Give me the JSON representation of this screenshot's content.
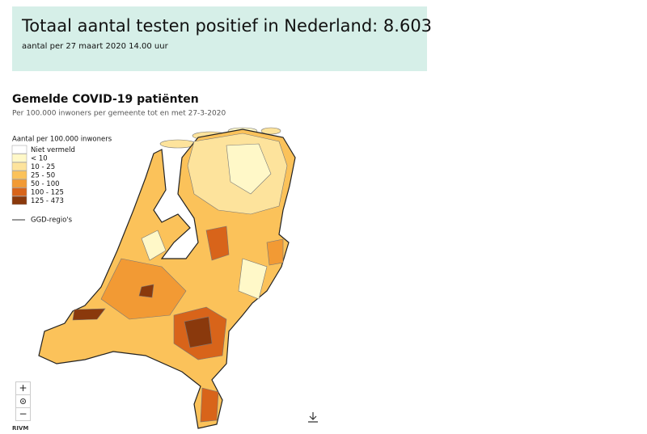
{
  "header": {
    "title": "Totaal aantal testen positief in Nederland: 8.603",
    "subtitle": "aantal per 27 maart 2020 14.00 uur"
  },
  "map": {
    "title": "Gemelde COVID-19 patiënten",
    "subtitle": "Per 100.000 inwoners per gemeente tot en met 27-3-2020"
  },
  "legend": {
    "title": "Aantal per 100.000 inwoners",
    "items": [
      {
        "label": "Niet vermeld",
        "color": "#ffffff"
      },
      {
        "label": "< 10",
        "color": "#fff8c8"
      },
      {
        "label": "10 - 25",
        "color": "#fde39c"
      },
      {
        "label": "25 - 50",
        "color": "#fbc25a"
      },
      {
        "label": "50 - 100",
        "color": "#f29a34"
      },
      {
        "label": "100 - 125",
        "color": "#d8641a"
      },
      {
        "label": "125 - 473",
        "color": "#8a390c"
      }
    ],
    "region_line": "GGD-regio's"
  },
  "controls": {
    "zoom_in": "+",
    "zoom_out": "−"
  },
  "attribution": "RIVM"
}
